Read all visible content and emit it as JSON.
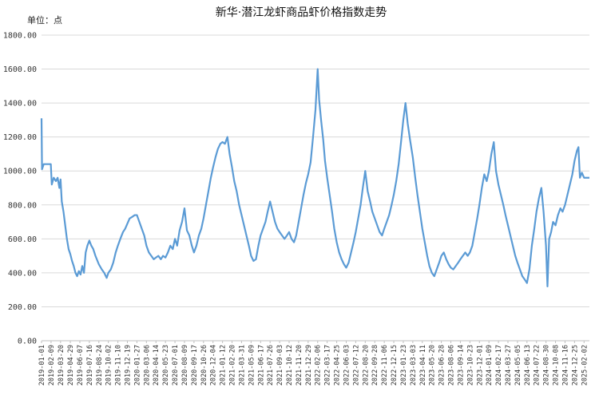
{
  "chart_data": {
    "type": "line",
    "title": "新华·潜江龙虾商品虾价格指数走势",
    "unit_label": "单位：点",
    "ylim": [
      0,
      1800
    ],
    "y_ticks": [
      "0.00",
      "200.00",
      "400.00",
      "600.00",
      "800.00",
      "1000.00",
      "1200.00",
      "1400.00",
      "1600.00",
      "1800.00"
    ],
    "y_tick_values": [
      0,
      200,
      400,
      600,
      800,
      1000,
      1200,
      1400,
      1600,
      1800
    ],
    "x_tick_labels": [
      "2019-01-01",
      "2019-02-09",
      "2019-03-20",
      "2019-04-29",
      "2019-06-07",
      "2019-07-16",
      "2019-08-24",
      "2019-10-02",
      "2019-11-10",
      "2019-12-19",
      "2020-01-27",
      "2020-03-06",
      "2020-04-14",
      "2020-05-23",
      "2020-07-01",
      "2020-08-09",
      "2020-09-17",
      "2020-10-26",
      "2020-12-04",
      "2021-01-12",
      "2021-02-20",
      "2021-03-31",
      "2021-05-09",
      "2021-06-17",
      "2021-07-26",
      "2021-09-03",
      "2021-10-12",
      "2021-11-20",
      "2021-12-29",
      "2022-02-06",
      "2022-03-17",
      "2022-04-25",
      "2022-06-03",
      "2022-07-12",
      "2022-08-20",
      "2022-09-28",
      "2022-11-06",
      "2022-12-15",
      "2023-01-23",
      "2023-03-03",
      "2023-04-11",
      "2023-05-20",
      "2023-06-28",
      "2023-08-06",
      "2023-09-14",
      "2023-10-23",
      "2023-12-01",
      "2024-01-09",
      "2024-02-17",
      "2024-03-27",
      "2024-05-05",
      "2024-06-13",
      "2024-07-22",
      "2024-08-30",
      "2024-10-08",
      "2024-11-16",
      "2024-12-25",
      "2025-02-02"
    ],
    "x_range": [
      "2019-01-01",
      "2025-02-24"
    ],
    "grid": true,
    "legend": "none",
    "series": [
      {
        "color": "#5b9bd5",
        "points": [
          [
            "2019-01-01",
            1310
          ],
          [
            "2019-01-03",
            1010
          ],
          [
            "2019-01-10",
            1040
          ],
          [
            "2019-02-01",
            1040
          ],
          [
            "2019-02-08",
            1040
          ],
          [
            "2019-02-12",
            920
          ],
          [
            "2019-02-20",
            960
          ],
          [
            "2019-03-01",
            940
          ],
          [
            "2019-03-08",
            960
          ],
          [
            "2019-03-15",
            900
          ],
          [
            "2019-03-20",
            950
          ],
          [
            "2019-03-25",
            820
          ],
          [
            "2019-04-01",
            760
          ],
          [
            "2019-04-08",
            680
          ],
          [
            "2019-04-15",
            600
          ],
          [
            "2019-04-22",
            540
          ],
          [
            "2019-04-29",
            510
          ],
          [
            "2019-05-06",
            470
          ],
          [
            "2019-05-13",
            440
          ],
          [
            "2019-05-20",
            400
          ],
          [
            "2019-05-27",
            380
          ],
          [
            "2019-06-03",
            410
          ],
          [
            "2019-06-10",
            390
          ],
          [
            "2019-06-17",
            440
          ],
          [
            "2019-06-24",
            400
          ],
          [
            "2019-07-01",
            520
          ],
          [
            "2019-07-08",
            560
          ],
          [
            "2019-07-16",
            590
          ],
          [
            "2019-07-24",
            560
          ],
          [
            "2019-08-01",
            540
          ],
          [
            "2019-08-10",
            500
          ],
          [
            "2019-08-24",
            450
          ],
          [
            "2019-09-05",
            420
          ],
          [
            "2019-09-15",
            400
          ],
          [
            "2019-09-25",
            370
          ],
          [
            "2019-10-02",
            400
          ],
          [
            "2019-10-12",
            420
          ],
          [
            "2019-10-22",
            460
          ],
          [
            "2019-11-01",
            520
          ],
          [
            "2019-11-10",
            560
          ],
          [
            "2019-11-20",
            600
          ],
          [
            "2019-12-01",
            640
          ],
          [
            "2019-12-10",
            660
          ],
          [
            "2019-12-19",
            690
          ],
          [
            "2019-12-28",
            720
          ],
          [
            "2020-01-08",
            730
          ],
          [
            "2020-01-18",
            740
          ],
          [
            "2020-01-27",
            740
          ],
          [
            "2020-02-06",
            700
          ],
          [
            "2020-02-16",
            660
          ],
          [
            "2020-02-26",
            620
          ],
          [
            "2020-03-06",
            560
          ],
          [
            "2020-03-16",
            520
          ],
          [
            "2020-03-26",
            500
          ],
          [
            "2020-04-05",
            480
          ],
          [
            "2020-04-14",
            490
          ],
          [
            "2020-04-24",
            500
          ],
          [
            "2020-05-04",
            480
          ],
          [
            "2020-05-13",
            500
          ],
          [
            "2020-05-23",
            490
          ],
          [
            "2020-06-02",
            520
          ],
          [
            "2020-06-12",
            560
          ],
          [
            "2020-06-22",
            540
          ],
          [
            "2020-07-01",
            600
          ],
          [
            "2020-07-10",
            560
          ],
          [
            "2020-07-20",
            650
          ],
          [
            "2020-07-30",
            700
          ],
          [
            "2020-08-09",
            780
          ],
          [
            "2020-08-19",
            650
          ],
          [
            "2020-08-29",
            620
          ],
          [
            "2020-09-08",
            560
          ],
          [
            "2020-09-17",
            520
          ],
          [
            "2020-09-27",
            560
          ],
          [
            "2020-10-07",
            620
          ],
          [
            "2020-10-17",
            660
          ],
          [
            "2020-10-26",
            720
          ],
          [
            "2020-11-05",
            800
          ],
          [
            "2020-11-15",
            880
          ],
          [
            "2020-11-25",
            960
          ],
          [
            "2020-12-04",
            1020
          ],
          [
            "2020-12-14",
            1080
          ],
          [
            "2020-12-24",
            1130
          ],
          [
            "2021-01-03",
            1160
          ],
          [
            "2021-01-12",
            1170
          ],
          [
            "2021-01-22",
            1160
          ],
          [
            "2021-02-01",
            1200
          ],
          [
            "2021-02-10",
            1100
          ],
          [
            "2021-02-20",
            1020
          ],
          [
            "2021-03-01",
            940
          ],
          [
            "2021-03-11",
            880
          ],
          [
            "2021-03-21",
            800
          ],
          [
            "2021-03-31",
            740
          ],
          [
            "2021-04-10",
            680
          ],
          [
            "2021-04-20",
            620
          ],
          [
            "2021-04-30",
            560
          ],
          [
            "2021-05-09",
            500
          ],
          [
            "2021-05-19",
            470
          ],
          [
            "2021-05-29",
            480
          ],
          [
            "2021-06-08",
            560
          ],
          [
            "2021-06-17",
            620
          ],
          [
            "2021-06-27",
            660
          ],
          [
            "2021-07-07",
            700
          ],
          [
            "2021-07-16",
            760
          ],
          [
            "2021-07-26",
            820
          ],
          [
            "2021-08-05",
            760
          ],
          [
            "2021-08-15",
            700
          ],
          [
            "2021-08-25",
            660
          ],
          [
            "2021-09-03",
            640
          ],
          [
            "2021-09-13",
            620
          ],
          [
            "2021-09-23",
            600
          ],
          [
            "2021-10-03",
            620
          ],
          [
            "2021-10-12",
            640
          ],
          [
            "2021-10-22",
            600
          ],
          [
            "2021-11-01",
            580
          ],
          [
            "2021-11-10",
            620
          ],
          [
            "2021-11-20",
            700
          ],
          [
            "2021-11-30",
            780
          ],
          [
            "2021-12-10",
            860
          ],
          [
            "2021-12-20",
            930
          ],
          [
            "2021-12-29",
            980
          ],
          [
            "2022-01-08",
            1050
          ],
          [
            "2022-01-18",
            1200
          ],
          [
            "2022-01-28",
            1360
          ],
          [
            "2022-02-06",
            1600
          ],
          [
            "2022-02-12",
            1420
          ],
          [
            "2022-02-20",
            1300
          ],
          [
            "2022-03-01",
            1180
          ],
          [
            "2022-03-08",
            1060
          ],
          [
            "2022-03-17",
            960
          ],
          [
            "2022-03-27",
            860
          ],
          [
            "2022-04-06",
            760
          ],
          [
            "2022-04-15",
            660
          ],
          [
            "2022-04-25",
            580
          ],
          [
            "2022-05-05",
            520
          ],
          [
            "2022-05-15",
            480
          ],
          [
            "2022-05-25",
            450
          ],
          [
            "2022-06-03",
            430
          ],
          [
            "2022-06-13",
            460
          ],
          [
            "2022-06-23",
            520
          ],
          [
            "2022-07-03",
            580
          ],
          [
            "2022-07-12",
            640
          ],
          [
            "2022-07-22",
            720
          ],
          [
            "2022-08-01",
            800
          ],
          [
            "2022-08-10",
            900
          ],
          [
            "2022-08-20",
            1000
          ],
          [
            "2022-08-30",
            880
          ],
          [
            "2022-09-09",
            820
          ],
          [
            "2022-09-18",
            760
          ],
          [
            "2022-09-28",
            720
          ],
          [
            "2022-10-08",
            680
          ],
          [
            "2022-10-18",
            640
          ],
          [
            "2022-10-28",
            620
          ],
          [
            "2022-11-06",
            660
          ],
          [
            "2022-11-16",
            700
          ],
          [
            "2022-11-26",
            740
          ],
          [
            "2022-12-06",
            800
          ],
          [
            "2022-12-15",
            860
          ],
          [
            "2022-12-25",
            940
          ],
          [
            "2023-01-04",
            1040
          ],
          [
            "2023-01-13",
            1160
          ],
          [
            "2023-01-23",
            1300
          ],
          [
            "2023-02-01",
            1400
          ],
          [
            "2023-02-10",
            1280
          ],
          [
            "2023-02-20",
            1180
          ],
          [
            "2023-03-03",
            1080
          ],
          [
            "2023-03-13",
            960
          ],
          [
            "2023-03-22",
            860
          ],
          [
            "2023-04-01",
            760
          ],
          [
            "2023-04-11",
            660
          ],
          [
            "2023-04-21",
            580
          ],
          [
            "2023-05-01",
            500
          ],
          [
            "2023-05-10",
            440
          ],
          [
            "2023-05-20",
            400
          ],
          [
            "2023-05-30",
            380
          ],
          [
            "2023-06-09",
            420
          ],
          [
            "2023-06-19",
            460
          ],
          [
            "2023-06-28",
            500
          ],
          [
            "2023-07-08",
            520
          ],
          [
            "2023-07-18",
            480
          ],
          [
            "2023-07-28",
            450
          ],
          [
            "2023-08-06",
            430
          ],
          [
            "2023-08-16",
            420
          ],
          [
            "2023-08-26",
            440
          ],
          [
            "2023-09-05",
            460
          ],
          [
            "2023-09-14",
            480
          ],
          [
            "2023-09-24",
            500
          ],
          [
            "2023-10-04",
            520
          ],
          [
            "2023-10-14",
            500
          ],
          [
            "2023-10-23",
            520
          ],
          [
            "2023-11-02",
            560
          ],
          [
            "2023-11-12",
            640
          ],
          [
            "2023-11-22",
            720
          ],
          [
            "2023-12-01",
            800
          ],
          [
            "2023-12-11",
            900
          ],
          [
            "2023-12-21",
            980
          ],
          [
            "2023-12-31",
            940
          ],
          [
            "2024-01-09",
            1000
          ],
          [
            "2024-01-19",
            1100
          ],
          [
            "2024-01-29",
            1170
          ],
          [
            "2024-02-07",
            1000
          ],
          [
            "2024-02-17",
            920
          ],
          [
            "2024-02-27",
            860
          ],
          [
            "2024-03-08",
            800
          ],
          [
            "2024-03-17",
            740
          ],
          [
            "2024-03-27",
            680
          ],
          [
            "2024-04-06",
            620
          ],
          [
            "2024-04-16",
            560
          ],
          [
            "2024-04-26",
            500
          ],
          [
            "2024-05-05",
            460
          ],
          [
            "2024-05-15",
            420
          ],
          [
            "2024-05-25",
            380
          ],
          [
            "2024-06-04",
            360
          ],
          [
            "2024-06-13",
            340
          ],
          [
            "2024-06-23",
            420
          ],
          [
            "2024-07-03",
            560
          ],
          [
            "2024-07-13",
            660
          ],
          [
            "2024-07-22",
            760
          ],
          [
            "2024-08-01",
            840
          ],
          [
            "2024-08-11",
            900
          ],
          [
            "2024-08-20",
            760
          ],
          [
            "2024-08-30",
            560
          ],
          [
            "2024-09-05",
            320
          ],
          [
            "2024-09-12",
            600
          ],
          [
            "2024-09-20",
            640
          ],
          [
            "2024-09-28",
            700
          ],
          [
            "2024-10-08",
            680
          ],
          [
            "2024-10-18",
            740
          ],
          [
            "2024-10-28",
            780
          ],
          [
            "2024-11-06",
            760
          ],
          [
            "2024-11-16",
            800
          ],
          [
            "2024-11-26",
            860
          ],
          [
            "2024-12-06",
            920
          ],
          [
            "2024-12-16",
            980
          ],
          [
            "2024-12-25",
            1060
          ],
          [
            "2025-01-04",
            1120
          ],
          [
            "2025-01-10",
            1140
          ],
          [
            "2025-01-16",
            960
          ],
          [
            "2025-01-24",
            990
          ],
          [
            "2025-02-02",
            960
          ],
          [
            "2025-02-12",
            960
          ],
          [
            "2025-02-24",
            960
          ]
        ]
      }
    ]
  }
}
